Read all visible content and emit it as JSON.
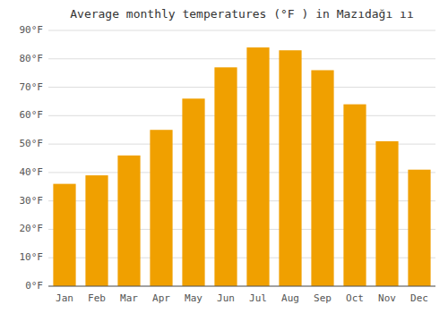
{
  "chart_data": {
    "type": "bar",
    "title": "Average monthly temperatures (°F ) in Mazıdağı ıı",
    "categories": [
      "Jan",
      "Feb",
      "Mar",
      "Apr",
      "May",
      "Jun",
      "Jul",
      "Aug",
      "Sep",
      "Oct",
      "Nov",
      "Dec"
    ],
    "values": [
      36,
      39,
      46,
      55,
      66,
      77,
      84,
      83,
      76,
      64,
      51,
      41
    ],
    "color": "#F0A000",
    "ylim": [
      0,
      90
    ],
    "yticks": [
      {
        "value": 0,
        "label": "0°F"
      },
      {
        "value": 10,
        "label": "10°F"
      },
      {
        "value": 20,
        "label": "20°F"
      },
      {
        "value": 30,
        "label": "30°F"
      },
      {
        "value": 40,
        "label": "40°F"
      },
      {
        "value": 50,
        "label": "50°F"
      },
      {
        "value": 60,
        "label": "60°F"
      },
      {
        "value": 70,
        "label": "70°F"
      },
      {
        "value": 80,
        "label": "80°F"
      },
      {
        "value": 90,
        "label": "90°F"
      }
    ],
    "grid": true
  }
}
